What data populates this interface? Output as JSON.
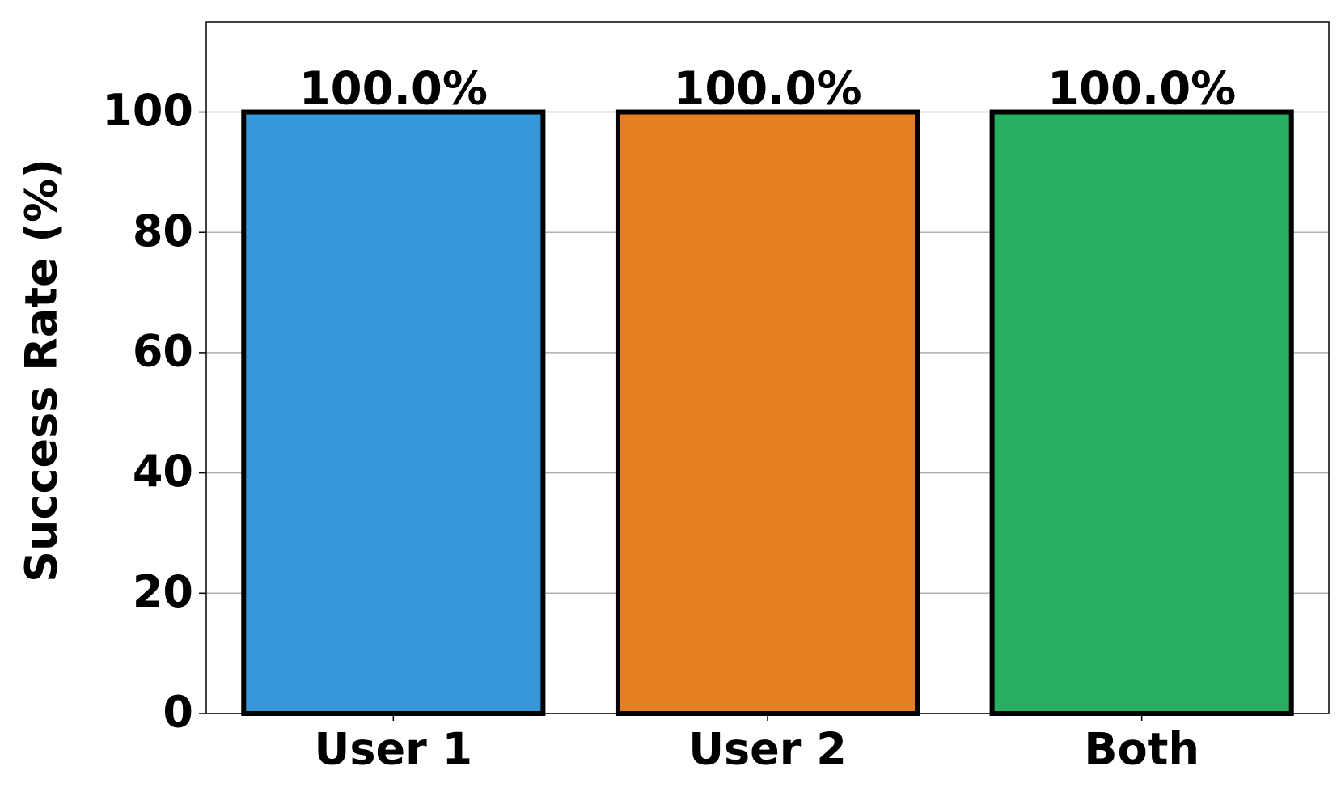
{
  "chart_data": {
    "type": "bar",
    "y_label": "Success Rate (%)",
    "categories": [
      "User 1",
      "User 2",
      "Both"
    ],
    "values": [
      100,
      100,
      100
    ],
    "value_labels": [
      "100.0%",
      "100.0%",
      "100.0%"
    ],
    "colors": [
      "#3498db",
      "#e67e22",
      "#27ae60"
    ],
    "ylim": [
      0,
      115
    ],
    "yticks": [
      0,
      20,
      40,
      60,
      80,
      100
    ],
    "grid": true
  }
}
